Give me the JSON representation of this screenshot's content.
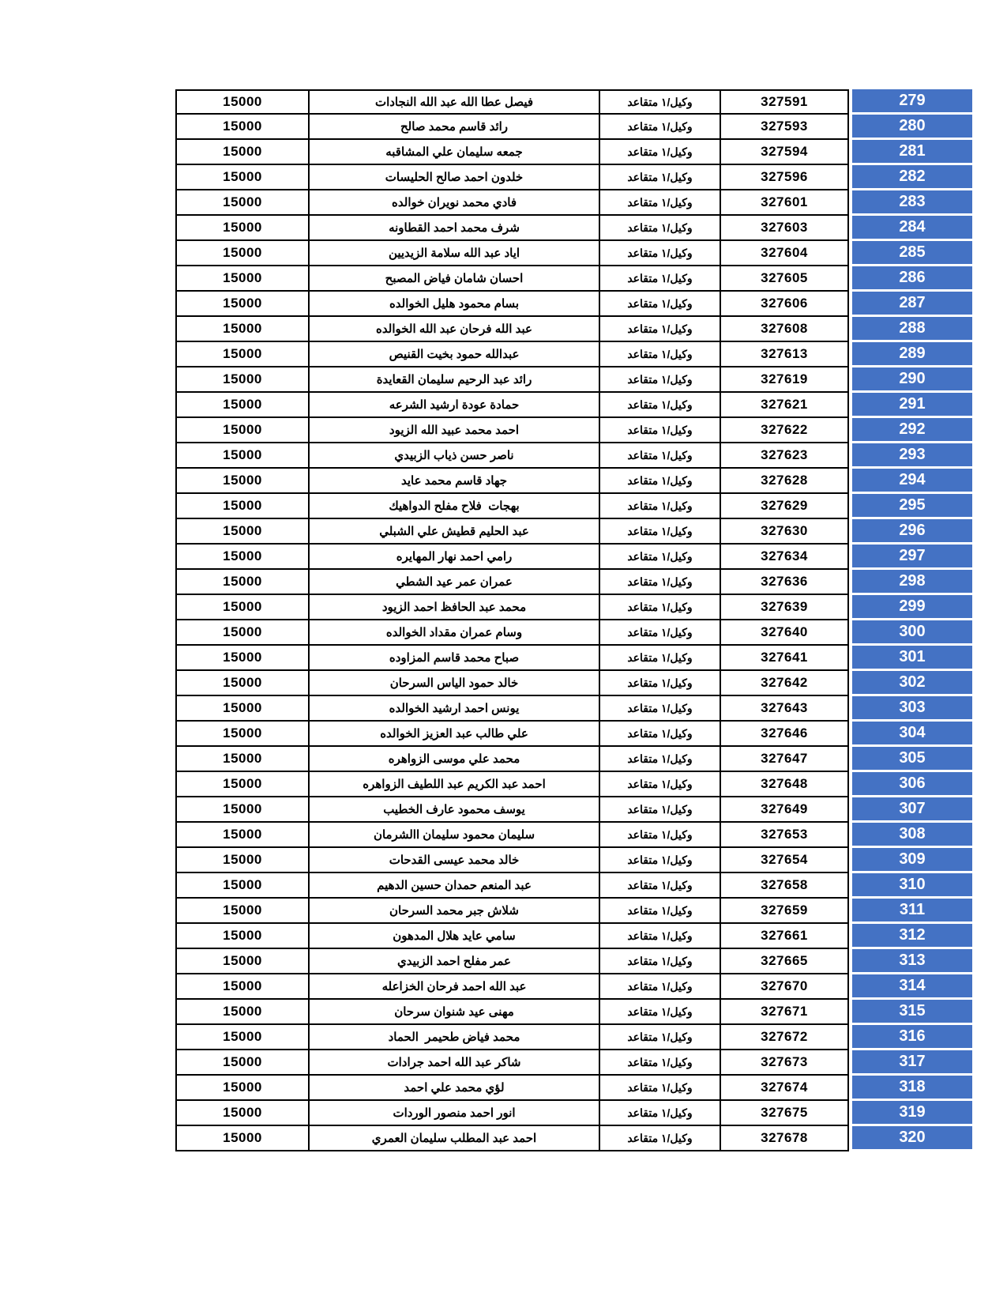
{
  "document": {
    "type": "pension-list-table",
    "rank_label_shared": "وكيل/١ متقاعد",
    "amount_shared": "15000"
  },
  "colors": {
    "index_column_bg": "#4472C4",
    "index_column_text": "#ffffff",
    "cell_border": "#000000",
    "page_bg": "#ffffff",
    "cell_text": "#000000"
  },
  "rows": [
    {
      "index": "279",
      "number": "327591",
      "rank": "وكيل/١ متقاعد",
      "name": "فيصل عطا الله عبد الله النجادات",
      "amount": "15000"
    },
    {
      "index": "280",
      "number": "327593",
      "rank": "وكيل/١ متقاعد",
      "name": "رائد قاسم محمد صالح",
      "amount": "15000"
    },
    {
      "index": "281",
      "number": "327594",
      "rank": "وكيل/١ متقاعد",
      "name": "جمعه سليمان علي المشاقبه",
      "amount": "15000"
    },
    {
      "index": "282",
      "number": "327596",
      "rank": "وكيل/١ متقاعد",
      "name": "خلدون احمد صالح الحليسات",
      "amount": "15000"
    },
    {
      "index": "283",
      "number": "327601",
      "rank": "وكيل/١ متقاعد",
      "name": "فادي محمد نويران خوالده",
      "amount": "15000"
    },
    {
      "index": "284",
      "number": "327603",
      "rank": "وكيل/١ متقاعد",
      "name": "شرف محمد احمد القطاونه",
      "amount": "15000"
    },
    {
      "index": "285",
      "number": "327604",
      "rank": "وكيل/١ متقاعد",
      "name": "اياد عبد الله سلامة الزيديين",
      "amount": "15000"
    },
    {
      "index": "286",
      "number": "327605",
      "rank": "وكيل/١ متقاعد",
      "name": "احسان شامان فياض المصبح",
      "amount": "15000"
    },
    {
      "index": "287",
      "number": "327606",
      "rank": "وكيل/١ متقاعد",
      "name": "بسام محمود هليل الخوالده",
      "amount": "15000"
    },
    {
      "index": "288",
      "number": "327608",
      "rank": "وكيل/١ متقاعد",
      "name": "عبد الله فرحان عبد الله الخوالده",
      "amount": "15000"
    },
    {
      "index": "289",
      "number": "327613",
      "rank": "وكيل/١ متقاعد",
      "name": "عبدالله حمود بخيت القنيص",
      "amount": "15000"
    },
    {
      "index": "290",
      "number": "327619",
      "rank": "وكيل/١ متقاعد",
      "name": "رائد عبد الرحيم سليمان القعايدة",
      "amount": "15000"
    },
    {
      "index": "291",
      "number": "327621",
      "rank": "وكيل/١ متقاعد",
      "name": "حمادة عودة ارشيد الشرعه",
      "amount": "15000"
    },
    {
      "index": "292",
      "number": "327622",
      "rank": "وكيل/١ متقاعد",
      "name": "احمد محمد عبيد الله الزيود",
      "amount": "15000"
    },
    {
      "index": "293",
      "number": "327623",
      "rank": "وكيل/١ متقاعد",
      "name": "ناصر حسن ذياب الزبيدي",
      "amount": "15000"
    },
    {
      "index": "294",
      "number": "327628",
      "rank": "وكيل/١ متقاعد",
      "name": "جهاد قاسم محمد عايد",
      "amount": "15000"
    },
    {
      "index": "295",
      "number": "327629",
      "rank": "وكيل/١ متقاعد",
      "name": "بهجات  فلاح مفلح الدواهيك",
      "amount": "15000"
    },
    {
      "index": "296",
      "number": "327630",
      "rank": "وكيل/١ متقاعد",
      "name": "عبد الحليم قطيش علي الشبلي",
      "amount": "15000"
    },
    {
      "index": "297",
      "number": "327634",
      "rank": "وكيل/١ متقاعد",
      "name": "رامي احمد نهار المهايره",
      "amount": "15000"
    },
    {
      "index": "298",
      "number": "327636",
      "rank": "وكيل/١ متقاعد",
      "name": "عمران عمر عيد الشطي",
      "amount": "15000"
    },
    {
      "index": "299",
      "number": "327639",
      "rank": "وكيل/١ متقاعد",
      "name": "محمد عبد الحافظ احمد الزيود",
      "amount": "15000"
    },
    {
      "index": "300",
      "number": "327640",
      "rank": "وكيل/١ متقاعد",
      "name": "وسام عمران مقداد الخوالده",
      "amount": "15000"
    },
    {
      "index": "301",
      "number": "327641",
      "rank": "وكيل/١ متقاعد",
      "name": "صباح محمد قاسم المزاوده",
      "amount": "15000"
    },
    {
      "index": "302",
      "number": "327642",
      "rank": "وكيل/١ متقاعد",
      "name": "خالد حمود الياس السرحان",
      "amount": "15000"
    },
    {
      "index": "303",
      "number": "327643",
      "rank": "وكيل/١ متقاعد",
      "name": "يونس احمد ارشيد الخوالده",
      "amount": "15000"
    },
    {
      "index": "304",
      "number": "327646",
      "rank": "وكيل/١ متقاعد",
      "name": "علي طالب عبد العزيز الخوالده",
      "amount": "15000"
    },
    {
      "index": "305",
      "number": "327647",
      "rank": "وكيل/١ متقاعد",
      "name": "محمد علي موسى الزواهره",
      "amount": "15000"
    },
    {
      "index": "306",
      "number": "327648",
      "rank": "وكيل/١ متقاعد",
      "name": "احمد عبد الكريم عبد اللطيف الزواهره",
      "amount": "15000"
    },
    {
      "index": "307",
      "number": "327649",
      "rank": "وكيل/١ متقاعد",
      "name": "يوسف محمود عارف الخطيب",
      "amount": "15000"
    },
    {
      "index": "308",
      "number": "327653",
      "rank": "وكيل/١ متقاعد",
      "name": "سليمان محمود سليمان االشرمان",
      "amount": "15000"
    },
    {
      "index": "309",
      "number": "327654",
      "rank": "وكيل/١ متقاعد",
      "name": "خالد محمد عيسى القدحات",
      "amount": "15000"
    },
    {
      "index": "310",
      "number": "327658",
      "rank": "وكيل/١ متقاعد",
      "name": "عبد المنعم حمدان حسين الدهيم",
      "amount": "15000"
    },
    {
      "index": "311",
      "number": "327659",
      "rank": "وكيل/١ متقاعد",
      "name": "شلاش جبر محمد السرحان",
      "amount": "15000"
    },
    {
      "index": "312",
      "number": "327661",
      "rank": "وكيل/١ متقاعد",
      "name": "سامي عايد هلال المدهون",
      "amount": "15000"
    },
    {
      "index": "313",
      "number": "327665",
      "rank": "وكيل/١ متقاعد",
      "name": "عمر مفلح احمد الزبيدي",
      "amount": "15000"
    },
    {
      "index": "314",
      "number": "327670",
      "rank": "وكيل/١ متقاعد",
      "name": "عبد الله احمد فرحان الخزاعله",
      "amount": "15000"
    },
    {
      "index": "315",
      "number": "327671",
      "rank": "وكيل/١ متقاعد",
      "name": "مهنى عيد شنوان سرحان",
      "amount": "15000"
    },
    {
      "index": "316",
      "number": "327672",
      "rank": "وكيل/١ متقاعد",
      "name": "محمد فياض طحيمر  الحماد",
      "amount": "15000"
    },
    {
      "index": "317",
      "number": "327673",
      "rank": "وكيل/١ متقاعد",
      "name": "شاكر عبد الله احمد جرادات",
      "amount": "15000"
    },
    {
      "index": "318",
      "number": "327674",
      "rank": "وكيل/١ متقاعد",
      "name": "لؤي محمد علي احمد",
      "amount": "15000"
    },
    {
      "index": "319",
      "number": "327675",
      "rank": "وكيل/١ متقاعد",
      "name": "انور احمد منصور الوردات",
      "amount": "15000"
    },
    {
      "index": "320",
      "number": "327678",
      "rank": "وكيل/١ متقاعد",
      "name": "احمد عبد المطلب سليمان العمري",
      "amount": "15000"
    }
  ]
}
